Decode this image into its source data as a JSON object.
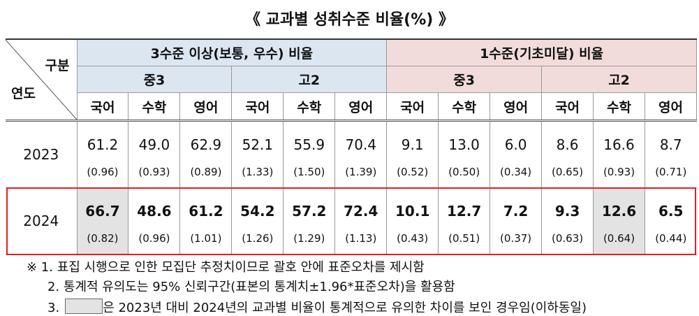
{
  "title": "《 교과별 성취수준 비율(%) 》",
  "header": {
    "corner_top": "구분",
    "corner_bottom": "연도",
    "groups": [
      "3수준 이상(보통, 우수) 비율",
      "1수준(기초미달) 비율"
    ],
    "subgroups": [
      "중3",
      "고2",
      "중3",
      "고2"
    ],
    "subjects": [
      "국어",
      "수학",
      "영어",
      "국어",
      "수학",
      "영어",
      "국어",
      "수학",
      "영어",
      "국어",
      "수학",
      "영어"
    ]
  },
  "table": {
    "rows": [
      {
        "year": "2023",
        "values": [
          "61.2",
          "49.0",
          "62.9",
          "52.1",
          "55.9",
          "70.4",
          "9.1",
          "13.0",
          "6.0",
          "8.6",
          "16.6",
          "8.7"
        ],
        "errors": [
          "(0.96)",
          "(0.93)",
          "(0.89)",
          "(1.33)",
          "(1.50)",
          "(1.39)",
          "(0.52)",
          "(0.50)",
          "(0.34)",
          "(0.65)",
          "(0.93)",
          "(0.71)"
        ]
      },
      {
        "year": "2024",
        "values": [
          "66.7",
          "48.6",
          "61.2",
          "54.2",
          "57.2",
          "72.4",
          "10.1",
          "12.7",
          "7.2",
          "9.3",
          "12.6",
          "6.5"
        ],
        "errors": [
          "(0.82)",
          "(0.96)",
          "(1.01)",
          "(1.26)",
          "(1.29)",
          "(1.13)",
          "(0.43)",
          "(0.51)",
          "(0.37)",
          "(0.63)",
          "(0.64)",
          "(0.44)"
        ]
      }
    ]
  },
  "notes": [
    "※ 1. 표집 시행으로 인한 모집단 추정치이므로 괄호 안에 표준오차를 제시함",
    "2. 통계적 유의도는 95% 신뢰구간(표본의 통계치±1.96*표준오차)을 활용함",
    {
      "number": "3.",
      "text": "은 2023년 대비 2024년의 교과별 비율이 통계적으로 유의한 차이를 보인 경우임(이하동일)"
    }
  ]
}
